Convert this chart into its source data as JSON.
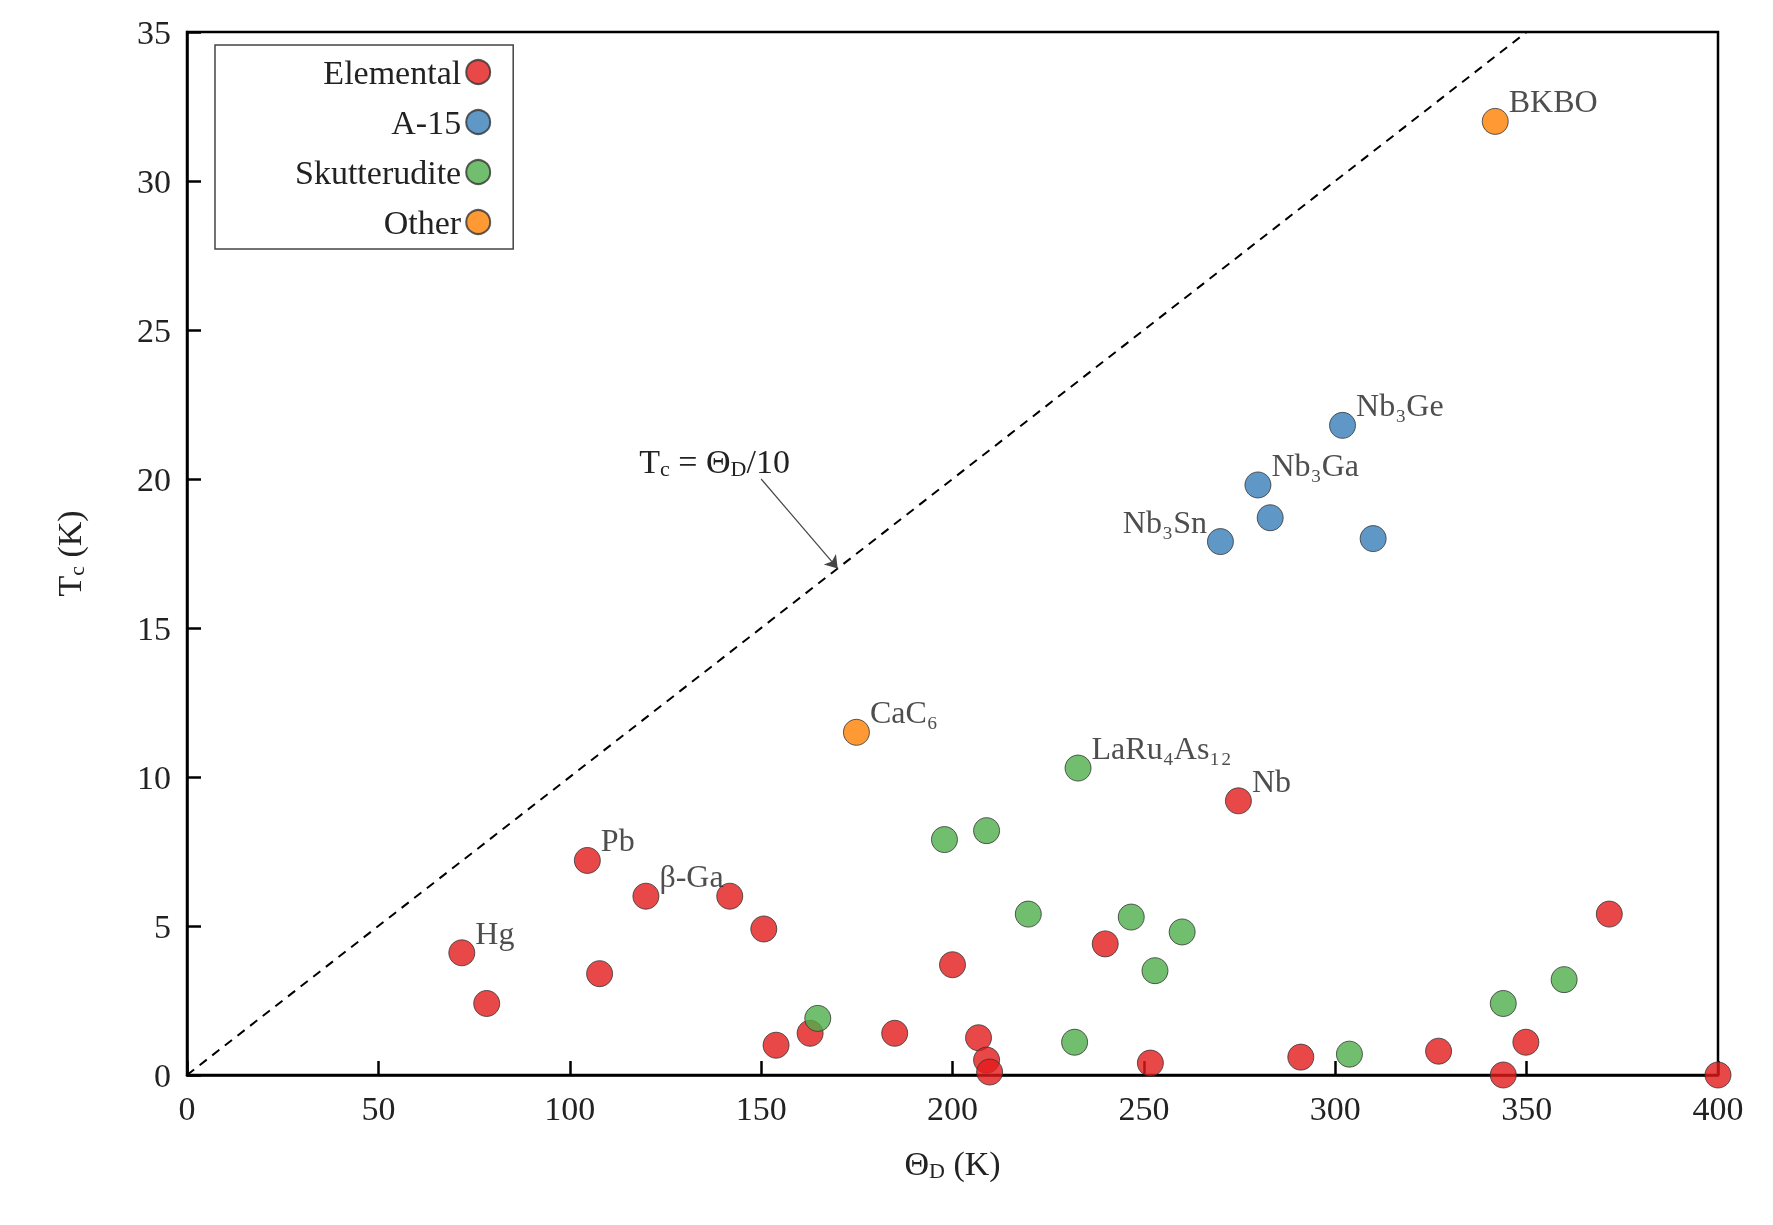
{
  "chart_data": {
    "type": "scatter",
    "xlabel": "Θ$_{D}$ (K)",
    "ylabel": "T$_{c}$ (K)",
    "xlim": [
      0,
      400
    ],
    "xticks": [
      0,
      50,
      100,
      150,
      200,
      250,
      300,
      350,
      400
    ],
    "ylim": [
      0,
      35
    ],
    "yticks": [
      0,
      5,
      10,
      15,
      20,
      25,
      30,
      35
    ],
    "grid": false,
    "legend": "top left",
    "marker": "circle",
    "annotations": [
      {
        "text": "T$_{c}$ = Θ$_{D}$/10",
        "x": 170,
        "y": 17
      }
    ],
    "series": [
      {
        "name": "Elemental",
        "color": "#e41a1c",
        "x": [
          71.8,
          78.3,
          104.6,
          107.8,
          119.9,
          141.8,
          150.7,
          153.9,
          162.8,
          184.9,
          200,
          206.8,
          208.9,
          209.7,
          239.9,
          251.7,
          274.7,
          291,
          327,
          343.9,
          349.8,
          371.6,
          400
        ],
        "values": [
          4.1,
          2.4,
          7.2,
          3.4,
          6.0,
          6.0,
          4.9,
          1.0,
          1.4,
          1.4,
          3.7,
          1.25,
          0.5,
          0.1,
          4.4,
          0.4,
          9.2,
          0.6,
          0.8,
          0,
          1.1,
          5.4,
          0
        ],
        "value_labels": [
          "Hg",
          null,
          "Pb",
          null,
          "β-Ga",
          null,
          null,
          null,
          null,
          null,
          null,
          null,
          null,
          null,
          null,
          null,
          "Nb",
          null,
          null,
          null,
          null,
          null,
          null
        ]
      },
      {
        "name": "A-15",
        "color": "#377eb8",
        "x": [
          270,
          279.8,
          283,
          301.9,
          309.9
        ],
        "values": [
          17.9,
          19.8,
          18.7,
          21.8,
          18.0
        ],
        "value_labels": [
          "Nb₃Sn",
          "Nb₃Ga",
          null,
          "Nb₃Ge",
          null
        ]
      },
      {
        "name": "Skutterudite",
        "color": "#4daf4a",
        "x": [
          164.8,
          197.9,
          208.9,
          219.8,
          231.9,
          232.8,
          246.7,
          252.9,
          260,
          303.7,
          343.9,
          359.8
        ],
        "values": [
          1.9,
          7.9,
          8.2,
          5.4,
          1.1,
          10.3,
          5.3,
          3.5,
          4.8,
          0.7,
          2.4,
          3.2
        ],
        "value_labels": [
          null,
          null,
          null,
          null,
          null,
          "LaRu₄As₁₂",
          null,
          null,
          null,
          null,
          null,
          null
        ]
      },
      {
        "name": "Other",
        "color": "#ff7f00",
        "x": [
          174.9,
          341.8
        ],
        "values": [
          11.5,
          32.0
        ],
        "value_labels": [
          "CaC₆",
          "BKBO"
        ]
      },
      {
        "type": "line",
        "color": "#000000",
        "x": [
          0,
          350
        ],
        "values": [
          0,
          35
        ],
        "line_style": "dashed",
        "marker": "none"
      }
    ]
  }
}
